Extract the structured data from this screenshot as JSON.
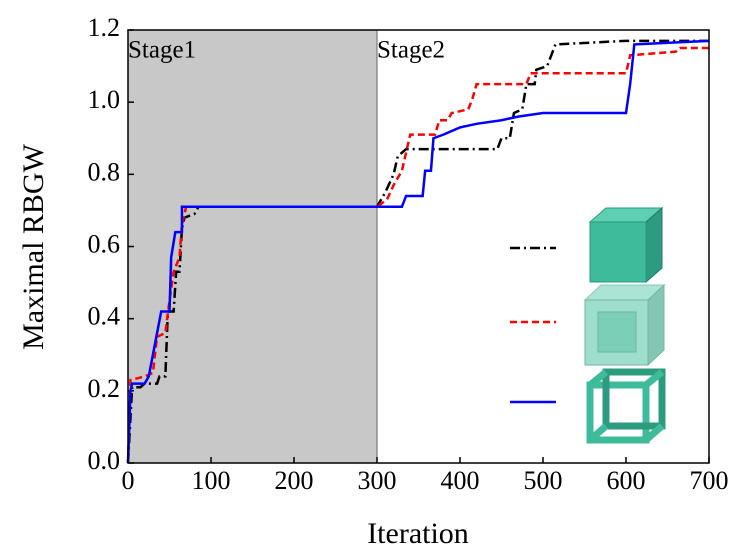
{
  "chart_data": {
    "type": "line",
    "xlabel": "Iteration",
    "ylabel": "Maximal RBGW",
    "annotations": [
      "Stage1",
      "Stage2"
    ],
    "shade_x": [
      0,
      300
    ],
    "shade_color": "#c8c8c8",
    "xlim": [
      0,
      700
    ],
    "ylim": [
      0,
      1.2
    ],
    "xticks": [
      0,
      100,
      200,
      300,
      400,
      500,
      600,
      700
    ],
    "yticks": [
      {
        "value": 0,
        "label": "0.0"
      },
      {
        "value": 0.2,
        "label": "0.2"
      },
      {
        "value": 0.4,
        "label": "0.4"
      },
      {
        "value": 0.6,
        "label": "0.6"
      },
      {
        "value": 0.8,
        "label": "0.8"
      },
      {
        "value": 1.0,
        "label": "1.0"
      },
      {
        "value": 1.2,
        "label": "1.2"
      }
    ],
    "series": [
      {
        "color": "#000000",
        "linestyle": "dashdot",
        "x": [
          0,
          5,
          15,
          20,
          35,
          38,
          45,
          48,
          55,
          58,
          62,
          65,
          68,
          80,
          85,
          300,
          310,
          320,
          325,
          335,
          445,
          450,
          460,
          465,
          475,
          480,
          490,
          492,
          505,
          515,
          600,
          700
        ],
        "values": [
          0,
          0.21,
          0.21,
          0.22,
          0.22,
          0.24,
          0.24,
          0.42,
          0.42,
          0.53,
          0.53,
          0.65,
          0.68,
          0.69,
          0.71,
          0.71,
          0.75,
          0.8,
          0.85,
          0.87,
          0.87,
          0.9,
          0.9,
          0.97,
          0.98,
          1.05,
          1.05,
          1.09,
          1.1,
          1.16,
          1.17,
          1.17
        ]
      },
      {
        "color": "#ff0000",
        "linestyle": "dashed",
        "x": [
          0,
          3,
          20,
          30,
          35,
          45,
          50,
          55,
          62,
          65,
          70,
          300,
          312,
          320,
          330,
          340,
          370,
          375,
          385,
          390,
          410,
          415,
          420,
          480,
          485,
          600,
          605,
          660,
          665,
          700
        ],
        "values": [
          0,
          0.23,
          0.24,
          0.25,
          0.35,
          0.36,
          0.45,
          0.53,
          0.57,
          0.66,
          0.71,
          0.71,
          0.73,
          0.77,
          0.81,
          0.91,
          0.91,
          0.95,
          0.95,
          0.97,
          0.98,
          1.01,
          1.05,
          1.05,
          1.08,
          1.08,
          1.13,
          1.14,
          1.15,
          1.15
        ]
      },
      {
        "color": "#0000ff",
        "linestyle": "solid",
        "x": [
          0,
          3,
          5,
          20,
          25,
          30,
          35,
          40,
          50,
          52,
          57,
          65,
          65,
          330,
          335,
          355,
          358,
          365,
          368,
          380,
          400,
          420,
          450,
          470,
          500,
          600,
          605,
          610,
          700
        ],
        "values": [
          0,
          0.2,
          0.22,
          0.22,
          0.24,
          0.3,
          0.36,
          0.42,
          0.42,
          0.57,
          0.64,
          0.64,
          0.71,
          0.71,
          0.74,
          0.74,
          0.81,
          0.81,
          0.9,
          0.91,
          0.93,
          0.94,
          0.95,
          0.96,
          0.97,
          0.97,
          1.05,
          1.16,
          1.17
        ]
      }
    ]
  }
}
